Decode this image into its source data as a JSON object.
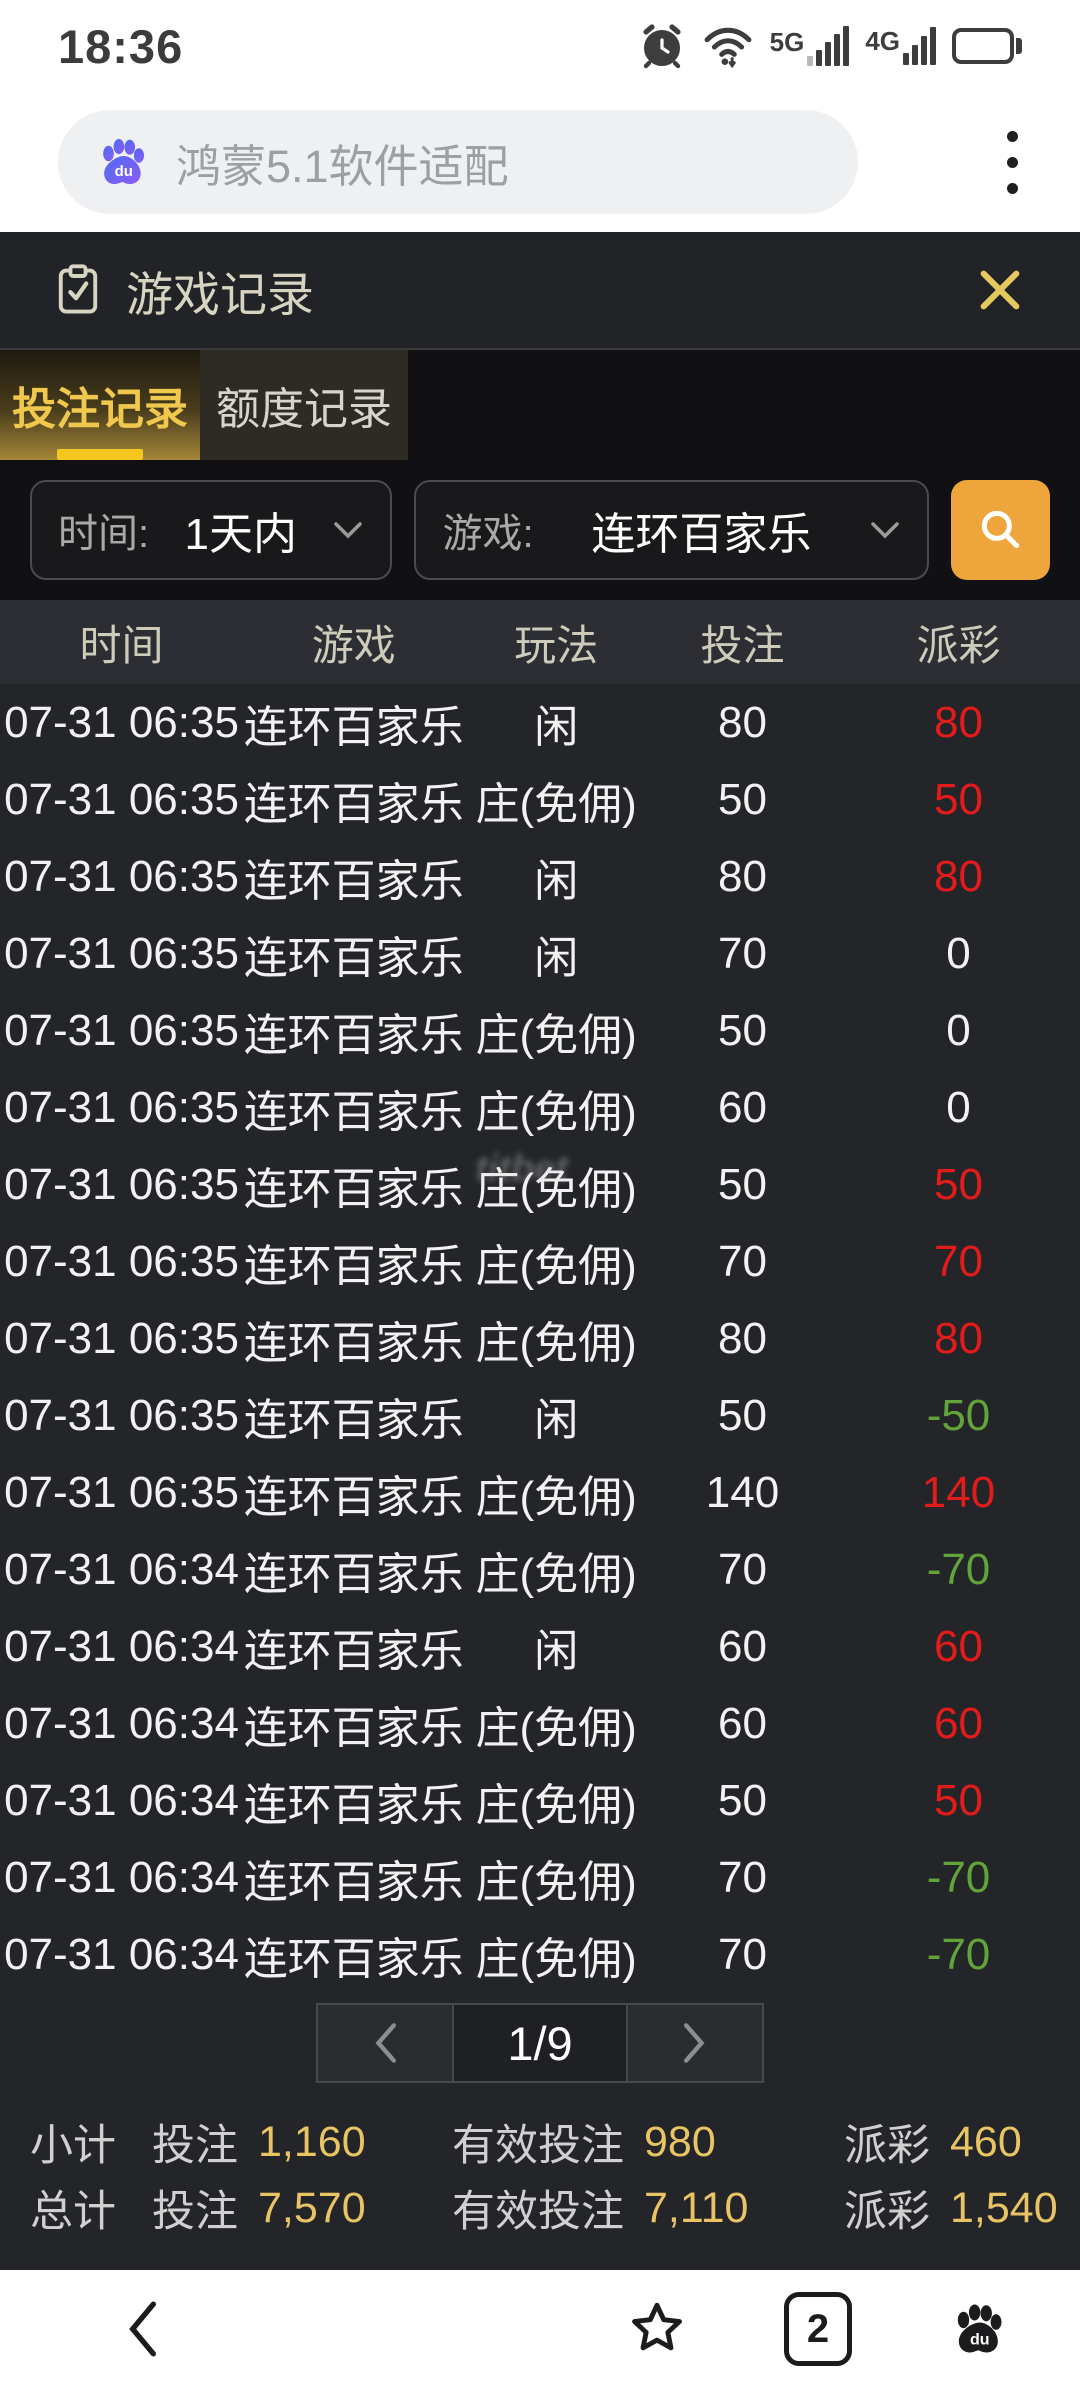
{
  "status_bar": {
    "time": "18:36",
    "icons": [
      "alarm",
      "wifi",
      "signal-5g",
      "signal-4g",
      "battery"
    ]
  },
  "browser": {
    "search_text": "鸿蒙5.1软件适配",
    "logo": "baidu-paw",
    "logo_text": "du"
  },
  "modal": {
    "title": "游戏记录",
    "tabs": [
      {
        "label": "投注记录",
        "active": true
      },
      {
        "label": "额度记录",
        "active": false
      }
    ],
    "filters": {
      "time_label": "时间:",
      "time_value": "1天内",
      "game_label": "游戏:",
      "game_value": "连环百家乐"
    },
    "table": {
      "headers": [
        "时间",
        "游戏",
        "玩法",
        "投注",
        "派彩"
      ],
      "rows": [
        {
          "time": "07-31 06:35",
          "game": "连环百家乐",
          "play": "闲",
          "bet": "80",
          "payout": "80"
        },
        {
          "time": "07-31 06:35",
          "game": "连环百家乐",
          "play": "庄(免佣)",
          "bet": "50",
          "payout": "50"
        },
        {
          "time": "07-31 06:35",
          "game": "连环百家乐",
          "play": "闲",
          "bet": "80",
          "payout": "80"
        },
        {
          "time": "07-31 06:35",
          "game": "连环百家乐",
          "play": "闲",
          "bet": "70",
          "payout": "0"
        },
        {
          "time": "07-31 06:35",
          "game": "连环百家乐",
          "play": "庄(免佣)",
          "bet": "50",
          "payout": "0"
        },
        {
          "time": "07-31 06:35",
          "game": "连环百家乐",
          "play": "庄(免佣)",
          "bet": "60",
          "payout": "0"
        },
        {
          "time": "07-31 06:35",
          "game": "连环百家乐",
          "play": "庄(免佣)",
          "bet": "50",
          "payout": "50"
        },
        {
          "time": "07-31 06:35",
          "game": "连环百家乐",
          "play": "庄(免佣)",
          "bet": "70",
          "payout": "70"
        },
        {
          "time": "07-31 06:35",
          "game": "连环百家乐",
          "play": "庄(免佣)",
          "bet": "80",
          "payout": "80"
        },
        {
          "time": "07-31 06:35",
          "game": "连环百家乐",
          "play": "闲",
          "bet": "50",
          "payout": "-50"
        },
        {
          "time": "07-31 06:35",
          "game": "连环百家乐",
          "play": "庄(免佣)",
          "bet": "140",
          "payout": "140"
        },
        {
          "time": "07-31 06:34",
          "game": "连环百家乐",
          "play": "庄(免佣)",
          "bet": "70",
          "payout": "-70"
        },
        {
          "time": "07-31 06:34",
          "game": "连环百家乐",
          "play": "闲",
          "bet": "60",
          "payout": "60"
        },
        {
          "time": "07-31 06:34",
          "game": "连环百家乐",
          "play": "庄(免佣)",
          "bet": "60",
          "payout": "60"
        },
        {
          "time": "07-31 06:34",
          "game": "连环百家乐",
          "play": "庄(免佣)",
          "bet": "50",
          "payout": "50"
        },
        {
          "time": "07-31 06:34",
          "game": "连环百家乐",
          "play": "庄(免佣)",
          "bet": "70",
          "payout": "-70"
        },
        {
          "time": "07-31 06:34",
          "game": "连环百家乐",
          "play": "庄(免佣)",
          "bet": "70",
          "payout": "-70"
        }
      ],
      "watermark_row_index": 6,
      "watermark": "titbet"
    },
    "pagination": {
      "current": "1/9"
    },
    "summary": [
      {
        "label": "小计",
        "bet_label": "投注",
        "bet": "1,160",
        "valid_label": "有效投注",
        "valid": "980",
        "payout_label": "派彩",
        "payout": "460"
      },
      {
        "label": "总计",
        "bet_label": "投注",
        "bet": "7,570",
        "valid_label": "有效投注",
        "valid": "7,110",
        "payout_label": "派彩",
        "payout": "1,540"
      }
    ]
  },
  "bottom_nav": {
    "tab_count": "2"
  },
  "colors": {
    "gold_text": "#f1c84e",
    "gold_underline": "#f6c71f",
    "gold_value": "#e9c464",
    "search_button": "#eea63c",
    "payout_positive": "#e31b1b",
    "payout_negative": "#62a43a"
  }
}
